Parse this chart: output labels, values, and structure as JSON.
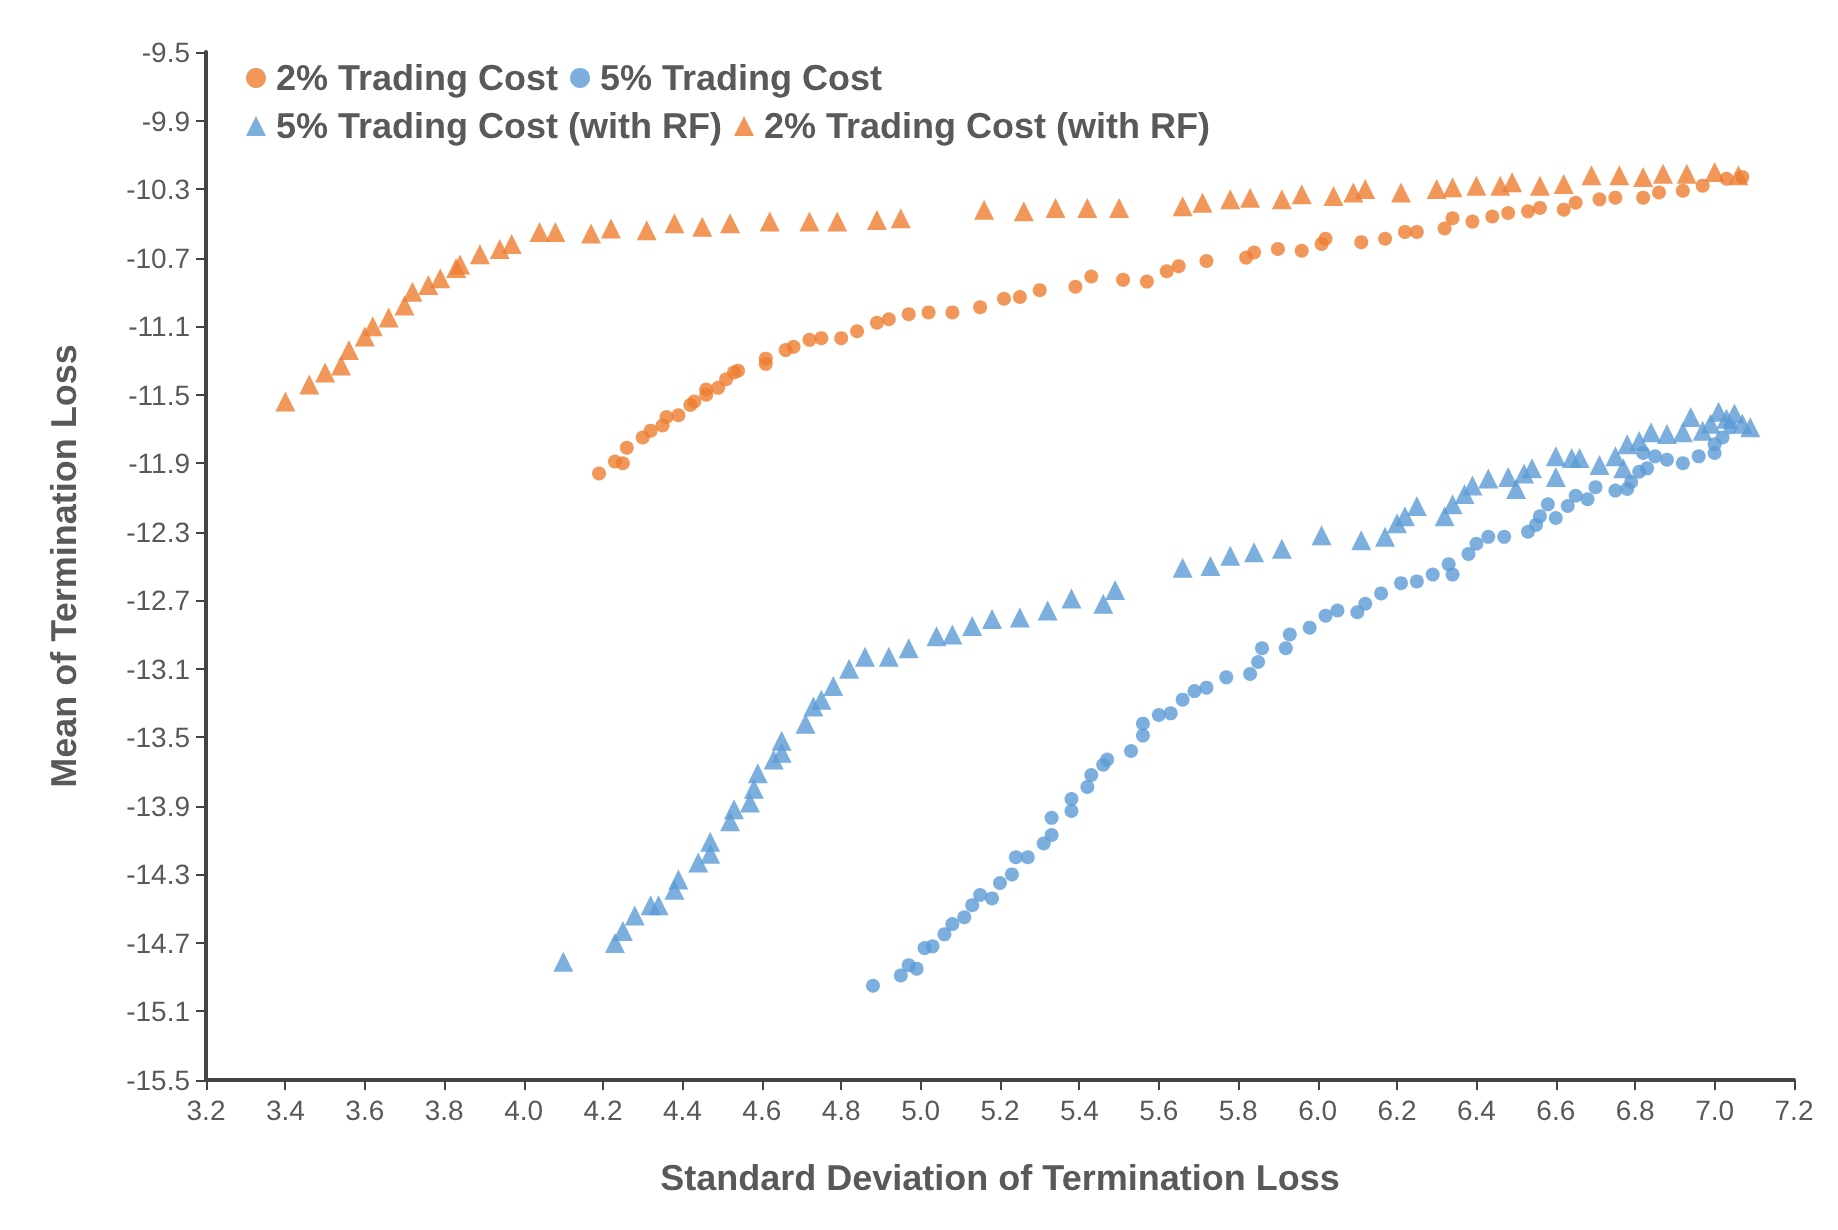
{
  "chart_data": {
    "type": "scatter",
    "xlabel": "Standard Deviation of Termination Loss",
    "ylabel": "Mean of Termination Loss",
    "legend": "top",
    "grid": false,
    "xlim": [
      3.2,
      7.2
    ],
    "xticks": [
      3.2,
      3.4,
      3.6,
      3.8,
      {
        "value": 4,
        "label": "4.0"
      },
      4.2,
      4.4,
      4.6,
      4.8,
      {
        "value": 5,
        "label": "5.0"
      },
      5.2,
      5.4,
      5.6,
      5.8,
      {
        "value": 6,
        "label": "6.0"
      },
      6.2,
      6.4,
      6.6,
      6.8,
      {
        "value": 7,
        "label": "7.0"
      },
      7.2
    ],
    "ylim": [
      -15.5,
      -9.5
    ],
    "yticks": [
      -15.5,
      -15.1,
      -14.7,
      -14.3,
      -13.9,
      -13.5,
      -13.1,
      -12.7,
      -12.3,
      -11.9,
      -11.5,
      -11.1,
      -10.7,
      -10.3,
      -9.9,
      -9.5
    ],
    "series": [
      {
        "name": "2% Trading Cost",
        "color": "#ed7d31",
        "marker": "circle",
        "x": [
          4.19,
          4.23,
          4.25,
          4.26,
          4.3,
          4.32,
          4.35,
          4.36,
          4.39,
          4.42,
          4.43,
          4.46,
          4.46,
          4.49,
          4.51,
          4.53,
          4.54,
          4.61,
          4.61,
          4.66,
          4.68,
          4.72,
          4.75,
          4.8,
          4.84,
          4.89,
          4.92,
          4.97,
          5.02,
          5.08,
          5.15,
          5.21,
          5.25,
          5.3,
          5.39,
          5.43,
          5.51,
          5.57,
          5.62,
          5.65,
          5.72,
          5.82,
          5.84,
          5.9,
          5.96,
          6.01,
          6.02,
          6.11,
          6.17,
          6.22,
          6.25,
          6.32,
          6.34,
          6.39,
          6.44,
          6.48,
          6.53,
          6.56,
          6.62,
          6.65,
          6.71,
          6.75,
          6.82,
          6.86,
          6.92,
          6.97,
          7.03,
          7.07
        ],
        "values": [
          -11.96,
          -11.89,
          -11.9,
          -11.81,
          -11.75,
          -11.71,
          -11.68,
          -11.63,
          -11.62,
          -11.56,
          -11.54,
          -11.5,
          -11.47,
          -11.46,
          -11.41,
          -11.37,
          -11.36,
          -11.32,
          -11.29,
          -11.24,
          -11.22,
          -11.18,
          -11.17,
          -11.17,
          -11.13,
          -11.08,
          -11.06,
          -11.03,
          -11.02,
          -11.02,
          -10.99,
          -10.94,
          -10.93,
          -10.89,
          -10.87,
          -10.81,
          -10.83,
          -10.84,
          -10.78,
          -10.75,
          -10.72,
          -10.7,
          -10.67,
          -10.65,
          -10.66,
          -10.62,
          -10.59,
          -10.61,
          -10.59,
          -10.55,
          -10.55,
          -10.53,
          -10.47,
          -10.49,
          -10.46,
          -10.44,
          -10.43,
          -10.41,
          -10.42,
          -10.38,
          -10.36,
          -10.35,
          -10.35,
          -10.32,
          -10.31,
          -10.28,
          -10.24,
          -10.23
        ]
      },
      {
        "name": "5% Trading Cost",
        "color": "#5b9bd5",
        "marker": "circle",
        "x": [
          4.88,
          4.95,
          4.97,
          4.99,
          5.01,
          5.03,
          5.06,
          5.08,
          5.11,
          5.13,
          5.15,
          5.18,
          5.2,
          5.23,
          5.24,
          5.27,
          5.31,
          5.33,
          5.33,
          5.38,
          5.38,
          5.42,
          5.43,
          5.46,
          5.47,
          5.53,
          5.56,
          5.56,
          5.6,
          5.63,
          5.66,
          5.69,
          5.72,
          5.77,
          5.83,
          5.85,
          5.86,
          5.92,
          5.93,
          5.98,
          6.02,
          6.05,
          6.1,
          6.12,
          6.16,
          6.21,
          6.25,
          6.29,
          6.34,
          6.33,
          6.38,
          6.4,
          6.43,
          6.47,
          6.53,
          6.55,
          6.56,
          6.58,
          6.6,
          6.63,
          6.65,
          6.68,
          6.7,
          6.75,
          6.78,
          6.79,
          6.81,
          6.83,
          6.82,
          6.85,
          6.88,
          6.92,
          6.96,
          7.0,
          7.0,
          7.02,
          7.04
        ],
        "values": [
          -14.95,
          -14.89,
          -14.83,
          -14.85,
          -14.73,
          -14.72,
          -14.65,
          -14.59,
          -14.55,
          -14.48,
          -14.42,
          -14.44,
          -14.35,
          -14.3,
          -14.2,
          -14.2,
          -14.12,
          -14.07,
          -13.97,
          -13.93,
          -13.86,
          -13.79,
          -13.72,
          -13.66,
          -13.63,
          -13.58,
          -13.49,
          -13.42,
          -13.37,
          -13.36,
          -13.28,
          -13.23,
          -13.21,
          -13.15,
          -13.13,
          -13.06,
          -12.98,
          -12.98,
          -12.9,
          -12.86,
          -12.79,
          -12.76,
          -12.77,
          -12.72,
          -12.66,
          -12.6,
          -12.59,
          -12.55,
          -12.55,
          -12.49,
          -12.43,
          -12.37,
          -12.33,
          -12.33,
          -12.3,
          -12.26,
          -12.21,
          -12.14,
          -12.22,
          -12.15,
          -12.09,
          -12.11,
          -12.04,
          -12.06,
          -12.05,
          -12.01,
          -11.95,
          -11.93,
          -11.84,
          -11.86,
          -11.88,
          -11.9,
          -11.86,
          -11.84,
          -11.79,
          -11.75,
          -11.69
        ]
      },
      {
        "name": "5% Trading Cost (with RF)",
        "color": "#5b9bd5",
        "marker": "triangle",
        "x": [
          4.1,
          4.23,
          4.25,
          4.28,
          4.32,
          4.34,
          4.38,
          4.39,
          4.44,
          4.47,
          4.47,
          4.52,
          4.53,
          4.57,
          4.58,
          4.59,
          4.63,
          4.65,
          4.65,
          4.71,
          4.73,
          4.75,
          4.78,
          4.82,
          4.86,
          4.92,
          4.97,
          5.04,
          5.08,
          5.13,
          5.18,
          5.25,
          5.32,
          5.38,
          5.46,
          5.49,
          5.66,
          5.73,
          5.78,
          5.84,
          5.91,
          6.01,
          6.11,
          6.17,
          6.2,
          6.22,
          6.25,
          6.32,
          6.34,
          6.37,
          6.39,
          6.43,
          6.48,
          6.5,
          6.52,
          6.54,
          6.6,
          6.6,
          6.64,
          6.66,
          6.71,
          6.75,
          6.77,
          6.78,
          6.81,
          6.84,
          6.88,
          6.92,
          6.94,
          6.97,
          6.99,
          7.01,
          7.03,
          7.05,
          7.07,
          7.09
        ],
        "values": [
          -14.81,
          -14.7,
          -14.63,
          -14.54,
          -14.48,
          -14.48,
          -14.39,
          -14.33,
          -14.23,
          -14.18,
          -14.11,
          -13.99,
          -13.92,
          -13.88,
          -13.8,
          -13.71,
          -13.63,
          -13.52,
          -13.59,
          -13.42,
          -13.32,
          -13.28,
          -13.2,
          -13.1,
          -13.03,
          -13.03,
          -12.98,
          -12.91,
          -12.9,
          -12.85,
          -12.81,
          -12.8,
          -12.76,
          -12.69,
          -12.72,
          -12.64,
          -12.51,
          -12.5,
          -12.44,
          -12.42,
          -12.4,
          -12.32,
          -12.35,
          -12.33,
          -12.25,
          -12.21,
          -12.15,
          -12.21,
          -12.14,
          -12.08,
          -12.03,
          -11.99,
          -11.98,
          -12.05,
          -11.96,
          -11.93,
          -11.86,
          -11.98,
          -11.87,
          -11.87,
          -11.91,
          -11.86,
          -11.93,
          -11.79,
          -11.77,
          -11.72,
          -11.73,
          -11.72,
          -11.63,
          -11.71,
          -11.67,
          -11.6,
          -11.64,
          -11.61,
          -11.67,
          -11.69
        ]
      },
      {
        "name": "2% Trading Cost (with RF)",
        "color": "#ed7d31",
        "marker": "triangle",
        "x": [
          3.4,
          3.46,
          3.5,
          3.54,
          3.56,
          3.6,
          3.62,
          3.66,
          3.7,
          3.72,
          3.76,
          3.79,
          3.83,
          3.84,
          3.89,
          3.94,
          3.97,
          4.04,
          4.08,
          4.17,
          4.22,
          4.31,
          4.38,
          4.45,
          4.52,
          4.62,
          4.72,
          4.79,
          4.89,
          4.95,
          5.16,
          5.26,
          5.34,
          5.42,
          5.5,
          5.66,
          5.71,
          5.78,
          5.83,
          5.91,
          5.96,
          6.04,
          6.09,
          6.12,
          6.21,
          6.3,
          6.34,
          6.4,
          6.46,
          6.49,
          6.56,
          6.62,
          6.69,
          6.76,
          6.82,
          6.87,
          6.93,
          7.0,
          7.06
        ],
        "values": [
          -11.54,
          -11.44,
          -11.37,
          -11.33,
          -11.24,
          -11.16,
          -11.1,
          -11.05,
          -10.98,
          -10.9,
          -10.86,
          -10.82,
          -10.76,
          -10.74,
          -10.68,
          -10.65,
          -10.62,
          -10.55,
          -10.55,
          -10.56,
          -10.53,
          -10.54,
          -10.5,
          -10.52,
          -10.5,
          -10.49,
          -10.49,
          -10.49,
          -10.48,
          -10.47,
          -10.42,
          -10.43,
          -10.41,
          -10.41,
          -10.41,
          -10.4,
          -10.38,
          -10.36,
          -10.35,
          -10.36,
          -10.33,
          -10.34,
          -10.32,
          -10.3,
          -10.32,
          -10.3,
          -10.29,
          -10.28,
          -10.28,
          -10.26,
          -10.28,
          -10.27,
          -10.22,
          -10.22,
          -10.23,
          -10.21,
          -10.21,
          -10.2,
          -10.22
        ]
      }
    ]
  }
}
